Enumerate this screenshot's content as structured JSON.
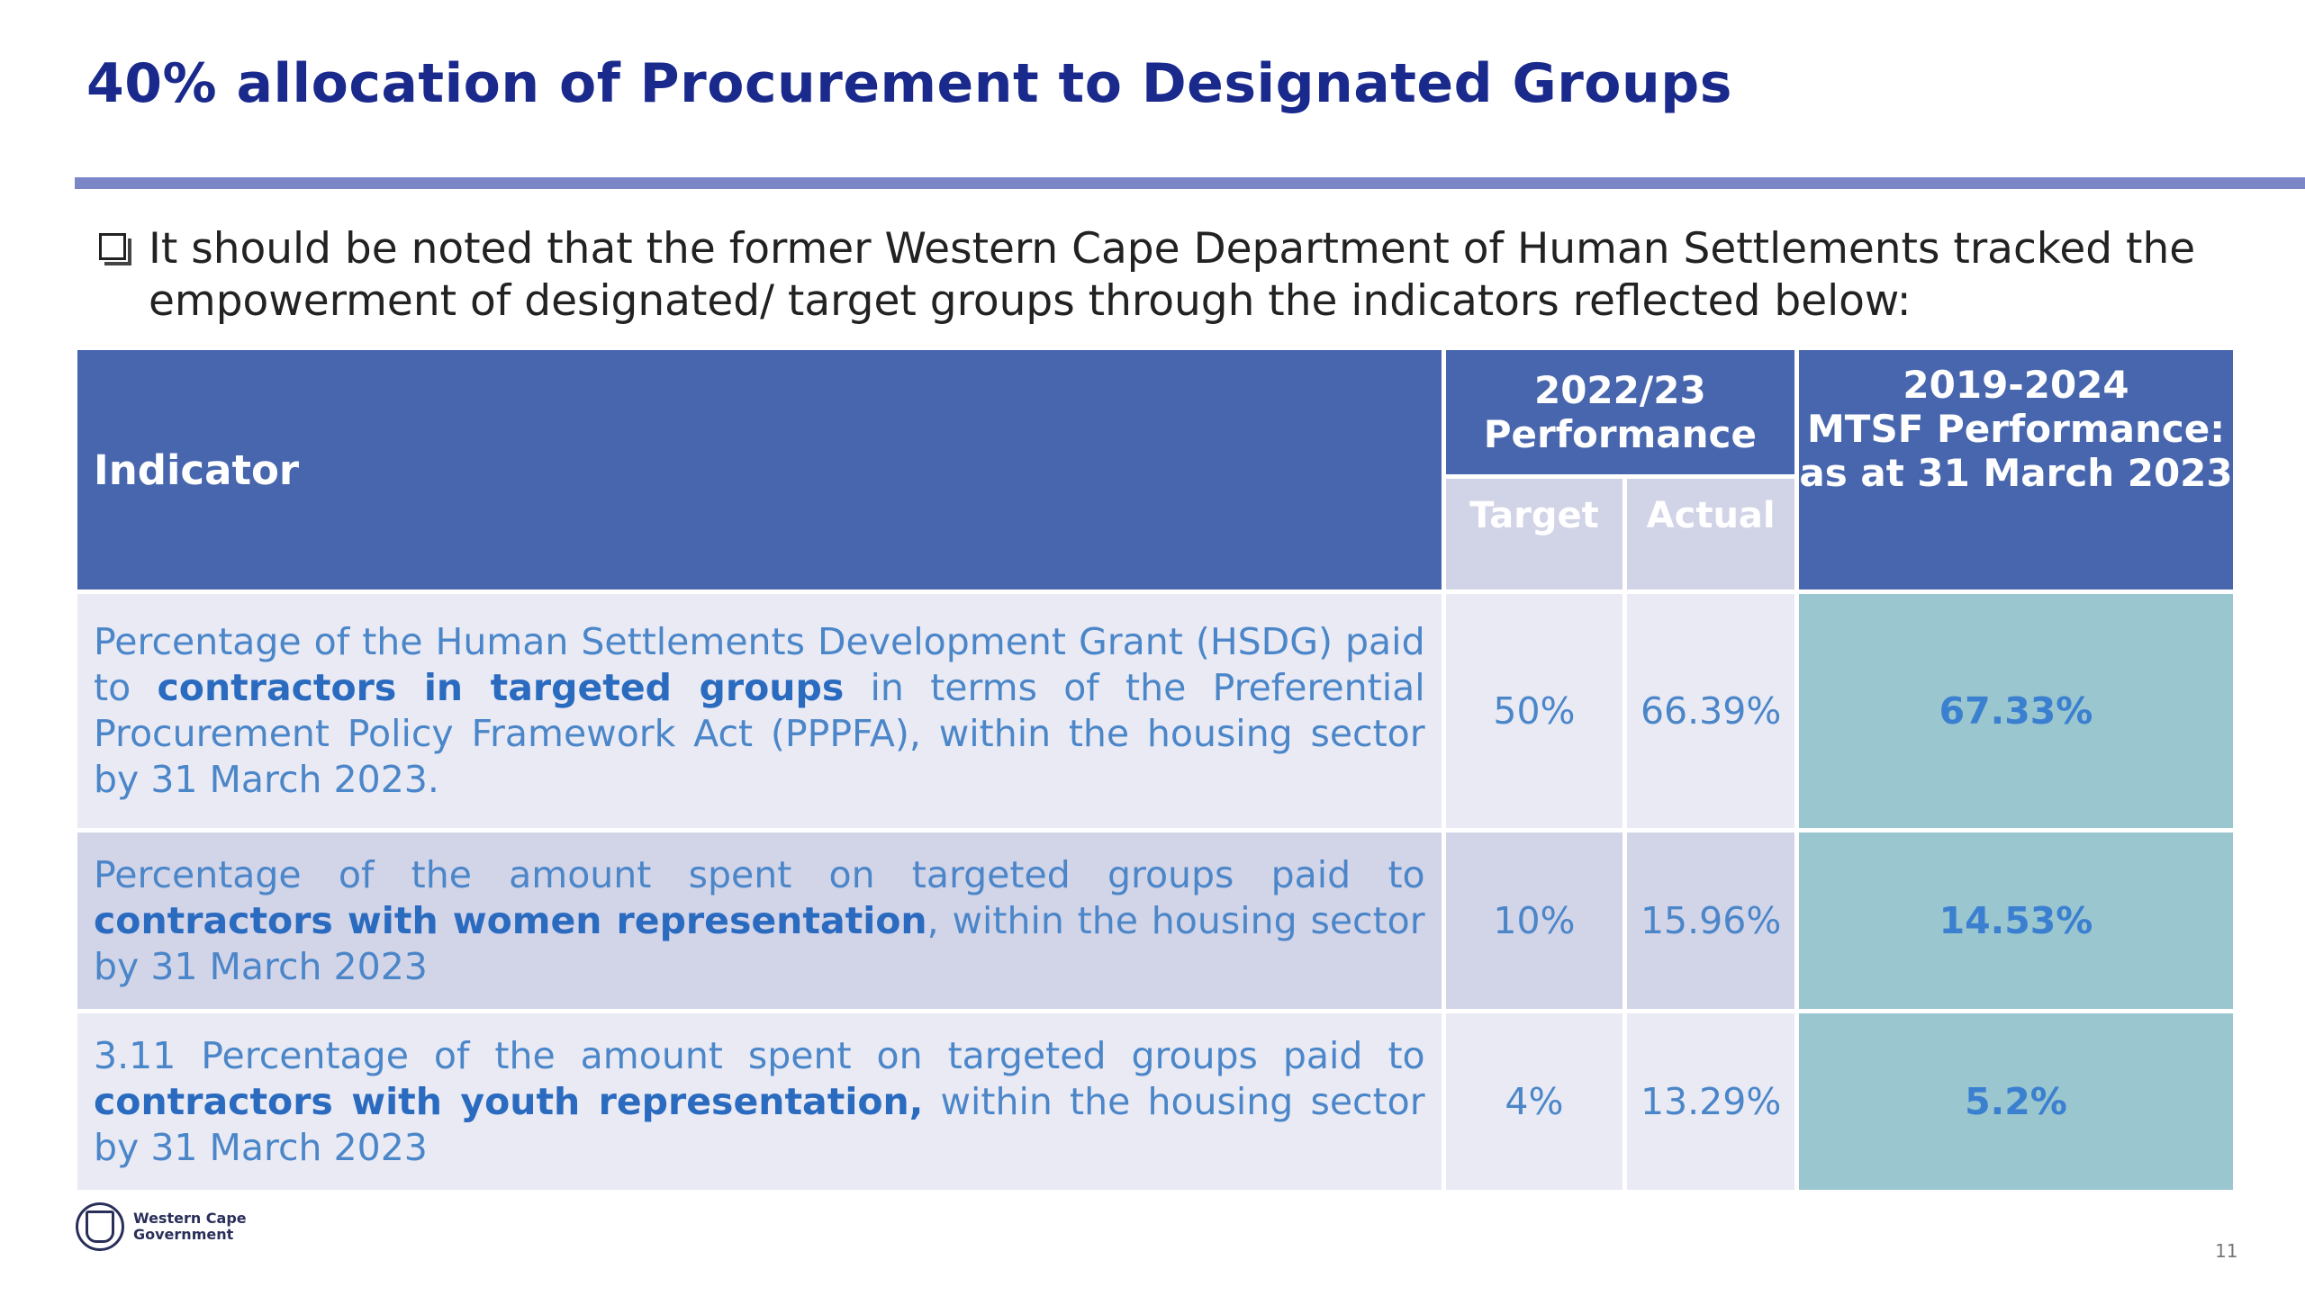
{
  "slide": {
    "title": "40% allocation of Procurement to Designated Groups",
    "note": "It should be noted that the former Western Cape Department of Human Settlements tracked the empowerment of designated/ target groups through the indicators reflected below:",
    "page_number": "11",
    "logo_line1": "Western Cape",
    "logo_line2": "Government"
  },
  "table": {
    "header_indicator": "Indicator",
    "header_perf_line1": "2022/23",
    "header_perf_line2": "Performance",
    "header_target": "Target",
    "header_actual": "Actual",
    "header_mtsf_line1": "2019-2024",
    "header_mtsf_line2": "MTSF Performance:",
    "header_mtsf_line3": "as at 31 March 2023",
    "rows": [
      {
        "ind_pre": "Percentage of the Human Settlements Development Grant (HSDG) paid to ",
        "ind_bold": "contractors in targeted groups",
        "ind_post": " in terms of the Preferential Procurement Policy Framework Act (PPPFA), within the housing sector by 31 March 2023.",
        "target": "50%",
        "actual": "66.39%",
        "mtsf": "67.33%"
      },
      {
        "ind_pre": "Percentage of the amount spent on targeted groups paid to ",
        "ind_bold": "contractors with women representation",
        "ind_post": ", within the housing sector by 31 March 2023",
        "target": "10%",
        "actual": "15.96%",
        "mtsf": "14.53%"
      },
      {
        "ind_pre": "3.11 Percentage of the amount spent on targeted groups paid to ",
        "ind_bold": "contractors with youth  representation,",
        "ind_post": " within the housing sector by 31 March 2023",
        "target": "4%",
        "actual": "13.29%",
        "mtsf": "5.2%"
      }
    ]
  }
}
